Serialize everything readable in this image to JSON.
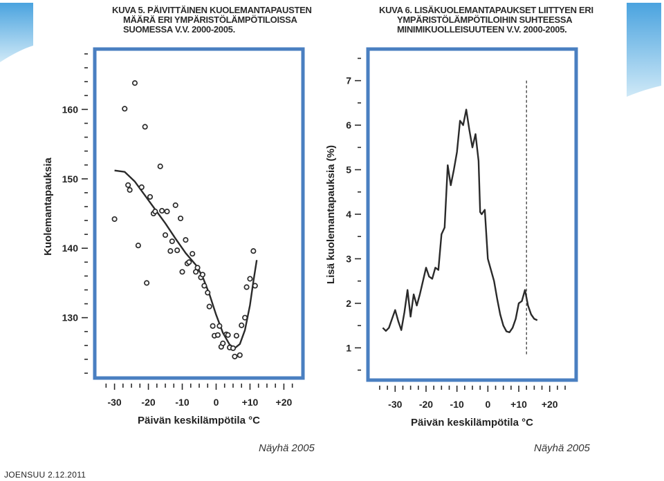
{
  "colors": {
    "frame": "#4a7fc1",
    "ink": "#2a2a2a",
    "deco_top": "#4aa3df",
    "deco_bottom": "#cfe9f7"
  },
  "footer": {
    "text": "JOENSUU 2.12.2011"
  },
  "chart_data": [
    {
      "type": "scatter",
      "title_lines": [
        "KUVA 5. PÄIVITTÄINEN KUOLEMANTAPAUSTEN",
        "MÄÄRÄ ERI YMPÄRISTÖLÄMPÖTILOISSA",
        "SUOMESSA V.V. 2000-2005."
      ],
      "ylabel": "Kuolemantapauksia",
      "xlabel": "Päivän keskilämpötila °C",
      "credit": "Näyhä 2005",
      "xlim": [
        -34,
        24
      ],
      "ylim": [
        122,
        168
      ],
      "x_ticks": [
        -30,
        -20,
        -10,
        0,
        10,
        20
      ],
      "x_tick_labels": [
        "-30",
        "-20",
        "-10",
        "0",
        "+10",
        "+20"
      ],
      "y_ticks": [
        130,
        140,
        150,
        160
      ],
      "y_tick_labels": [
        "130",
        "140",
        "150",
        "160"
      ],
      "grid": false,
      "points": [
        [
          -30,
          144.2
        ],
        [
          -27,
          160.1
        ],
        [
          -26,
          149.1
        ],
        [
          -25.5,
          148.4
        ],
        [
          -24,
          163.8
        ],
        [
          -23,
          140.4
        ],
        [
          -22,
          148.8
        ],
        [
          -21,
          157.5
        ],
        [
          -20.5,
          135
        ],
        [
          -19.5,
          147.4
        ],
        [
          -18.5,
          145
        ],
        [
          -18,
          145.3
        ],
        [
          -16.5,
          151.8
        ],
        [
          -16,
          145.4
        ],
        [
          -15,
          141.9
        ],
        [
          -14.5,
          145.3
        ],
        [
          -13.5,
          139.6
        ],
        [
          -13,
          141
        ],
        [
          -12,
          146.2
        ],
        [
          -11.5,
          139.7
        ],
        [
          -10.5,
          144.3
        ],
        [
          -10,
          136.6
        ],
        [
          -9,
          141.2
        ],
        [
          -8.5,
          137.8
        ],
        [
          -8,
          138
        ],
        [
          -7,
          139.2
        ],
        [
          -6,
          136.6
        ],
        [
          -5.5,
          137.2
        ],
        [
          -4.5,
          135.8
        ],
        [
          -4,
          136.2
        ],
        [
          -3.5,
          134.6
        ],
        [
          -2.5,
          133.6
        ],
        [
          -2,
          131.6
        ],
        [
          -1,
          128.8
        ],
        [
          -0.5,
          127.4
        ],
        [
          0.5,
          127.5
        ],
        [
          1,
          128.8
        ],
        [
          1.5,
          125.8
        ],
        [
          2,
          126.3
        ],
        [
          3,
          127.6
        ],
        [
          3.5,
          127.5
        ],
        [
          4,
          125.7
        ],
        [
          5,
          125.6
        ],
        [
          5.5,
          124.4
        ],
        [
          6,
          127.4
        ],
        [
          7,
          124.6
        ],
        [
          7.5,
          128.9
        ],
        [
          8.5,
          130
        ],
        [
          9,
          134.4
        ],
        [
          10,
          135.6
        ],
        [
          11,
          139.6
        ],
        [
          11.5,
          134.6
        ]
      ],
      "fit_curve": [
        [
          -30,
          151.2
        ],
        [
          -27,
          151
        ],
        [
          -24,
          149.6
        ],
        [
          -21,
          147.6
        ],
        [
          -18,
          145.6
        ],
        [
          -15,
          143.6
        ],
        [
          -12,
          141.4
        ],
        [
          -9,
          139.3
        ],
        [
          -6,
          137.6
        ],
        [
          -4,
          135.9
        ],
        [
          -2,
          133.4
        ],
        [
          0,
          130.4
        ],
        [
          2,
          127.8
        ],
        [
          4,
          126.1
        ],
        [
          5.5,
          125.6
        ],
        [
          7,
          126.2
        ],
        [
          8.5,
          128.2
        ],
        [
          10,
          131.8
        ],
        [
          11,
          135.2
        ],
        [
          12,
          138.3
        ]
      ]
    },
    {
      "type": "line",
      "title_lines": [
        "KUVA 6. LISÄKUOLEMANTAPAUKSET LIITTYEN ERI",
        "YMPÄRISTÖLÄMPÖTILOIHIN SUHTEESSA",
        "MINIMIKUOLLEISUUTEEN V.V. 2000-2005."
      ],
      "ylabel": "Lisä kuolemantapauksia (%)",
      "xlabel": "Päivän keskilämpötila °C",
      "credit": "Näyhä 2005",
      "xlim": [
        -37,
        27
      ],
      "ylim": [
        0.4,
        7.6
      ],
      "x_ticks": [
        -30,
        -20,
        -10,
        0,
        10,
        20
      ],
      "x_tick_labels": [
        "-30",
        "-20",
        "-10",
        "0",
        "+10",
        "+20"
      ],
      "y_ticks": [
        1,
        2,
        3,
        4,
        5,
        6,
        7
      ],
      "y_tick_labels": [
        "1",
        "2",
        "3",
        "4",
        "5",
        "6",
        "7"
      ],
      "grid": false,
      "reference_line_x": 12.5,
      "series": [
        {
          "values": [
            [
              -34,
              1.45
            ],
            [
              -33,
              1.38
            ],
            [
              -32,
              1.45
            ],
            [
              -31,
              1.65
            ],
            [
              -30,
              1.85
            ],
            [
              -29,
              1.6
            ],
            [
              -28,
              1.4
            ],
            [
              -27,
              1.8
            ],
            [
              -26,
              2.3
            ],
            [
              -25,
              1.7
            ],
            [
              -24,
              2.2
            ],
            [
              -23,
              1.95
            ],
            [
              -22,
              2.2
            ],
            [
              -21,
              2.5
            ],
            [
              -20,
              2.8
            ],
            [
              -19,
              2.6
            ],
            [
              -18,
              2.55
            ],
            [
              -17,
              2.8
            ],
            [
              -16,
              2.75
            ],
            [
              -15,
              3.55
            ],
            [
              -14,
              3.7
            ],
            [
              -13,
              5.1
            ],
            [
              -12,
              4.65
            ],
            [
              -11,
              5.0
            ],
            [
              -10,
              5.4
            ],
            [
              -9,
              6.1
            ],
            [
              -8,
              6.0
            ],
            [
              -7,
              6.35
            ],
            [
              -6,
              5.9
            ],
            [
              -5,
              5.5
            ],
            [
              -4,
              5.8
            ],
            [
              -3,
              5.2
            ],
            [
              -2.5,
              4.05
            ],
            [
              -2,
              4.0
            ],
            [
              -1,
              4.1
            ],
            [
              0,
              3.0
            ],
            [
              1,
              2.75
            ],
            [
              2,
              2.5
            ],
            [
              3,
              2.1
            ],
            [
              4,
              1.75
            ],
            [
              5,
              1.5
            ],
            [
              6,
              1.37
            ],
            [
              7,
              1.35
            ],
            [
              8,
              1.45
            ],
            [
              9,
              1.65
            ],
            [
              10,
              2.0
            ],
            [
              11,
              2.05
            ],
            [
              12,
              2.3
            ],
            [
              13,
              1.95
            ],
            [
              14,
              1.75
            ],
            [
              15,
              1.65
            ],
            [
              16,
              1.62
            ]
          ]
        }
      ]
    }
  ]
}
